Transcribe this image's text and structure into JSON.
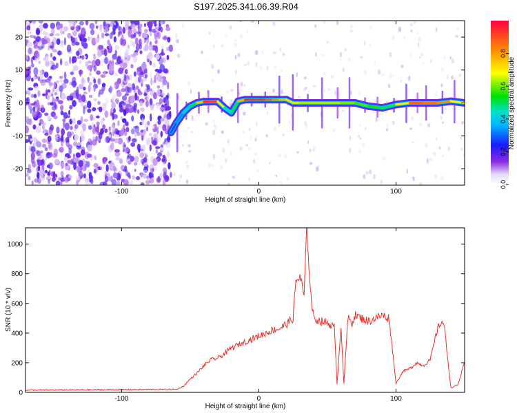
{
  "figure": {
    "title": "S197.2025.341.06.39.R04"
  },
  "chart_data": [
    {
      "type": "heatmap",
      "xlabel": "Height of straight line (km)",
      "ylabel": "Frequency (Hz)",
      "xlim": [
        -170,
        150
      ],
      "ylim": [
        -25,
        25
      ],
      "x_ticks": [
        -100,
        0,
        100
      ],
      "y_ticks": [
        -20,
        -10,
        0,
        10,
        20
      ],
      "x_tick_labels": [
        "-100",
        "0",
        "100"
      ],
      "y_tick_labels": [
        "-20",
        "-10",
        "0",
        "10",
        "20"
      ],
      "noise_region_x": [
        -170,
        -64
      ],
      "ridge": {
        "x": [
          -64,
          -60,
          -55,
          -50,
          -45,
          -40,
          -35,
          -30,
          -25,
          -20,
          -15,
          -10,
          -5,
          0,
          5,
          10,
          15,
          20,
          25,
          30,
          40,
          50,
          60,
          70,
          80,
          90,
          100,
          110,
          120,
          130,
          140,
          150
        ],
        "frequency": [
          -9,
          -6,
          -3,
          -1,
          0,
          0.4,
          0.4,
          0.4,
          -1.5,
          -3,
          0.5,
          1,
          1,
          1,
          1,
          1,
          1,
          1,
          0,
          0,
          0,
          0,
          0,
          0,
          -1,
          -1.5,
          -0.5,
          0,
          0,
          0,
          0.5,
          0
        ],
        "amplitude": [
          0.25,
          0.3,
          0.35,
          0.45,
          0.55,
          0.95,
          0.95,
          0.9,
          0.5,
          0.4,
          0.6,
          0.95,
          0.95,
          0.95,
          0.95,
          0.85,
          0.8,
          0.75,
          0.7,
          0.6,
          0.65,
          0.6,
          0.65,
          0.55,
          0.6,
          0.5,
          0.5,
          0.9,
          0.85,
          0.85,
          0.8,
          0.6
        ]
      },
      "colorbar": {
        "label": "Normalized spectral amplitude",
        "range": [
          0,
          1
        ],
        "ticks": [
          0.0,
          0.2,
          0.4,
          0.6,
          0.8
        ],
        "tick_labels": [
          "0.0",
          "0.2",
          "0.4",
          "0.6",
          "0.8"
        ]
      }
    },
    {
      "type": "line",
      "xlabel": "Height of straight line (km)",
      "ylabel": "SNR (10 * v/v)",
      "xlim": [
        -170,
        150
      ],
      "ylim": [
        0,
        1110
      ],
      "x_ticks": [
        -100,
        0,
        100
      ],
      "y_ticks": [
        0,
        200,
        400,
        600,
        800,
        1000
      ],
      "x_tick_labels": [
        "-100",
        "0",
        "100"
      ],
      "y_tick_labels": [
        "0",
        "200",
        "400",
        "600",
        "800",
        "1000"
      ],
      "series": [
        {
          "name": "SNR",
          "color": "#e8322b",
          "x": [
            -170,
            -60,
            -55,
            -50,
            -45,
            -40,
            -35,
            -30,
            -25,
            -20,
            -15,
            -10,
            -5,
            0,
            5,
            10,
            15,
            20,
            25,
            27,
            30,
            33,
            35,
            38,
            40,
            45,
            50,
            55,
            57,
            60,
            62,
            65,
            68,
            70,
            75,
            80,
            85,
            90,
            95,
            100,
            105,
            110,
            115,
            120,
            125,
            130,
            133,
            135,
            140,
            145,
            150
          ],
          "y": [
            15,
            20,
            40,
            90,
            130,
            180,
            220,
            230,
            260,
            300,
            320,
            340,
            360,
            380,
            400,
            420,
            430,
            460,
            500,
            750,
            780,
            650,
            1100,
            650,
            500,
            480,
            470,
            440,
            60,
            450,
            60,
            500,
            470,
            520,
            500,
            480,
            500,
            520,
            500,
            60,
            140,
            160,
            200,
            180,
            220,
            420,
            480,
            460,
            30,
            50,
            200
          ],
          "peak": {
            "x": 35.5,
            "y": 1100
          }
        }
      ]
    }
  ]
}
